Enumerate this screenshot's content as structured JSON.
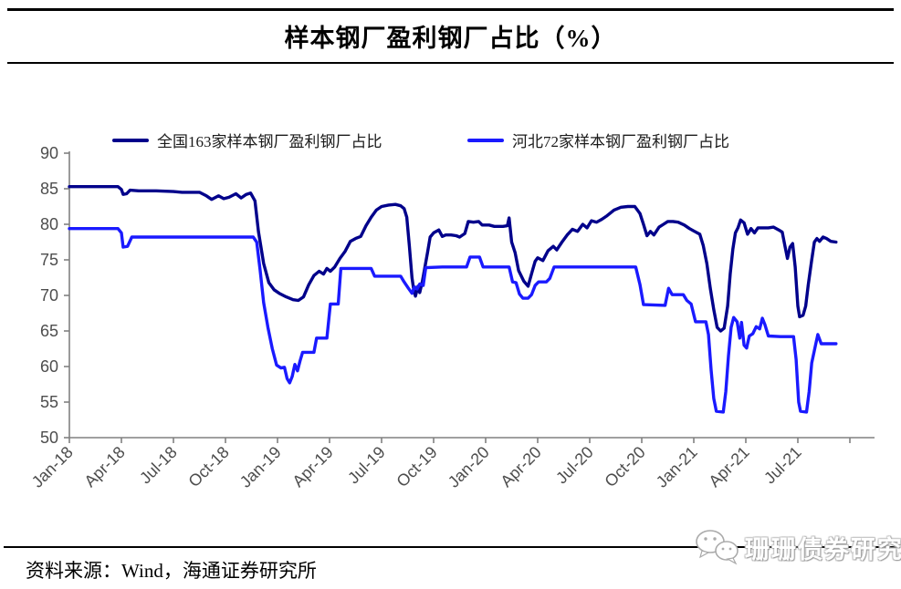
{
  "title": "样本钢厂盈利钢厂占比（%）",
  "source": {
    "label": "资料来源：Wind，海通证券研究所"
  },
  "watermark": {
    "text": "珊珊债券研究",
    "icon": "wechat-chat-bubbles-icon"
  },
  "axis_colors": {
    "axis_line": "#808080",
    "tick_text": "#4d4d4d"
  },
  "chart_data": {
    "type": "line",
    "title": "样本钢厂盈利钢厂占比（%）",
    "xlabel": "",
    "ylabel": "",
    "x_unit": "months since Jan-18",
    "ylim": [
      50,
      90
    ],
    "y_ticks": [
      50,
      55,
      60,
      65,
      70,
      75,
      80,
      85,
      90
    ],
    "x_tick_labels": [
      "Jan-18",
      "Apr-18",
      "Jul-18",
      "Oct-18",
      "Jan-19",
      "Apr-19",
      "Jul-19",
      "Oct-19",
      "Jan-20",
      "Apr-20",
      "Jul-20",
      "Oct-20",
      "Jan-21",
      "Apr-21",
      "Jul-21"
    ],
    "x_tick_positions": [
      0,
      3,
      6,
      9,
      12,
      15,
      18,
      21,
      24,
      27,
      30,
      33,
      36,
      39,
      42
    ],
    "extra_unlabeled_tick": 45,
    "grid": false,
    "legend_position": "top",
    "series": [
      {
        "name": "全国163家样本钢厂盈利钢厂占比",
        "color": "#00008B",
        "points": [
          [
            0,
            85.3
          ],
          [
            1,
            85.3
          ],
          [
            2,
            85.3
          ],
          [
            2.8,
            85.3
          ],
          [
            3.0,
            84.9
          ],
          [
            3.1,
            84.2
          ],
          [
            3.3,
            84.3
          ],
          [
            3.5,
            84.8
          ],
          [
            4,
            84.7
          ],
          [
            5,
            84.7
          ],
          [
            6,
            84.6
          ],
          [
            6.5,
            84.5
          ],
          [
            7.5,
            84.5
          ],
          [
            7.9,
            84.0
          ],
          [
            8.2,
            83.5
          ],
          [
            8.6,
            84.0
          ],
          [
            8.9,
            83.6
          ],
          [
            9.2,
            83.8
          ],
          [
            9.6,
            84.3
          ],
          [
            9.9,
            83.7
          ],
          [
            10.2,
            84.2
          ],
          [
            10.45,
            84.4
          ],
          [
            10.7,
            83.3
          ],
          [
            10.9,
            79.0
          ],
          [
            11.2,
            74.5
          ],
          [
            11.5,
            71.8
          ],
          [
            11.8,
            70.8
          ],
          [
            12.1,
            70.3
          ],
          [
            12.5,
            69.8
          ],
          [
            12.9,
            69.4
          ],
          [
            13.2,
            69.3
          ],
          [
            13.5,
            69.8
          ],
          [
            13.8,
            71.5
          ],
          [
            14.1,
            72.8
          ],
          [
            14.4,
            73.4
          ],
          [
            14.65,
            73.0
          ],
          [
            14.85,
            73.8
          ],
          [
            15.05,
            73.4
          ],
          [
            15.3,
            74.0
          ],
          [
            15.6,
            75.2
          ],
          [
            15.9,
            76.2
          ],
          [
            16.2,
            77.6
          ],
          [
            16.5,
            78.0
          ],
          [
            16.8,
            78.3
          ],
          [
            17.1,
            79.8
          ],
          [
            17.4,
            81.0
          ],
          [
            17.7,
            82.0
          ],
          [
            18.0,
            82.5
          ],
          [
            18.4,
            82.7
          ],
          [
            18.8,
            82.8
          ],
          [
            19.1,
            82.6
          ],
          [
            19.3,
            82.2
          ],
          [
            19.45,
            81.0
          ],
          [
            19.6,
            77.0
          ],
          [
            19.75,
            72.5
          ],
          [
            19.85,
            70.8
          ],
          [
            19.95,
            69.9
          ],
          [
            20.1,
            71.3
          ],
          [
            20.2,
            70.4
          ],
          [
            20.35,
            72.0
          ],
          [
            20.5,
            74.0
          ],
          [
            20.65,
            76.0
          ],
          [
            20.8,
            78.2
          ],
          [
            21.0,
            78.8
          ],
          [
            21.3,
            79.2
          ],
          [
            21.5,
            78.3
          ],
          [
            21.7,
            78.5
          ],
          [
            22.0,
            78.5
          ],
          [
            22.3,
            78.4
          ],
          [
            22.5,
            78.2
          ],
          [
            22.8,
            78.7
          ],
          [
            23.0,
            80.4
          ],
          [
            23.3,
            80.3
          ],
          [
            23.6,
            80.4
          ],
          [
            23.8,
            79.9
          ],
          [
            24.2,
            79.9
          ],
          [
            24.5,
            79.7
          ],
          [
            25.0,
            79.7
          ],
          [
            25.25,
            79.8
          ],
          [
            25.35,
            80.9
          ],
          [
            25.5,
            77.5
          ],
          [
            25.7,
            76.0
          ],
          [
            25.9,
            73.5
          ],
          [
            26.2,
            72.0
          ],
          [
            26.45,
            71.3
          ],
          [
            26.7,
            73.5
          ],
          [
            26.85,
            74.8
          ],
          [
            27.0,
            75.3
          ],
          [
            27.3,
            74.9
          ],
          [
            27.6,
            76.3
          ],
          [
            27.9,
            76.9
          ],
          [
            28.1,
            76.4
          ],
          [
            28.4,
            77.5
          ],
          [
            28.7,
            78.5
          ],
          [
            29.0,
            79.3
          ],
          [
            29.3,
            79.0
          ],
          [
            29.6,
            80.0
          ],
          [
            29.85,
            79.5
          ],
          [
            30.1,
            80.5
          ],
          [
            30.4,
            80.3
          ],
          [
            30.7,
            80.7
          ],
          [
            31.0,
            81.2
          ],
          [
            31.4,
            82.0
          ],
          [
            31.8,
            82.4
          ],
          [
            32.2,
            82.5
          ],
          [
            32.6,
            82.5
          ],
          [
            32.9,
            81.5
          ],
          [
            33.1,
            80.0
          ],
          [
            33.3,
            78.4
          ],
          [
            33.5,
            79.0
          ],
          [
            33.7,
            78.5
          ],
          [
            34.0,
            79.6
          ],
          [
            34.25,
            80.0
          ],
          [
            34.5,
            80.4
          ],
          [
            34.8,
            80.4
          ],
          [
            35.1,
            80.3
          ],
          [
            35.45,
            79.9
          ],
          [
            35.75,
            79.4
          ],
          [
            36.05,
            79.0
          ],
          [
            36.35,
            78.6
          ],
          [
            36.55,
            77.0
          ],
          [
            36.75,
            74.5
          ],
          [
            36.95,
            71.0
          ],
          [
            37.15,
            68.0
          ],
          [
            37.35,
            65.5
          ],
          [
            37.55,
            65.0
          ],
          [
            37.75,
            65.4
          ],
          [
            37.95,
            68.5
          ],
          [
            38.1,
            73.0
          ],
          [
            38.25,
            76.5
          ],
          [
            38.4,
            78.8
          ],
          [
            38.55,
            79.5
          ],
          [
            38.7,
            80.6
          ],
          [
            38.9,
            80.2
          ],
          [
            39.1,
            78.6
          ],
          [
            39.3,
            79.4
          ],
          [
            39.5,
            78.8
          ],
          [
            39.7,
            79.5
          ],
          [
            40.0,
            79.5
          ],
          [
            40.3,
            79.5
          ],
          [
            40.6,
            79.6
          ],
          [
            40.9,
            79.2
          ],
          [
            41.1,
            78.9
          ],
          [
            41.25,
            77.0
          ],
          [
            41.4,
            75.2
          ],
          [
            41.55,
            76.8
          ],
          [
            41.7,
            77.3
          ],
          [
            41.85,
            74.0
          ],
          [
            42.0,
            68.5
          ],
          [
            42.1,
            67.0
          ],
          [
            42.3,
            67.2
          ],
          [
            42.45,
            68.5
          ],
          [
            42.6,
            71.5
          ],
          [
            42.8,
            75.0
          ],
          [
            42.95,
            77.5
          ],
          [
            43.1,
            78.0
          ],
          [
            43.25,
            77.6
          ],
          [
            43.45,
            78.2
          ],
          [
            43.65,
            78.0
          ],
          [
            43.9,
            77.6
          ],
          [
            44.2,
            77.5
          ]
        ]
      },
      {
        "name": "河北72家样本钢厂盈利钢厂占比",
        "color": "#1A1AFF",
        "points": [
          [
            0,
            79.4
          ],
          [
            1,
            79.4
          ],
          [
            2,
            79.4
          ],
          [
            2.8,
            79.4
          ],
          [
            3.0,
            78.8
          ],
          [
            3.1,
            76.8
          ],
          [
            3.35,
            76.9
          ],
          [
            3.6,
            78.2
          ],
          [
            5,
            78.2
          ],
          [
            7,
            78.2
          ],
          [
            9,
            78.2
          ],
          [
            10.6,
            78.2
          ],
          [
            10.8,
            77.5
          ],
          [
            11.0,
            73.5
          ],
          [
            11.2,
            69.0
          ],
          [
            11.45,
            65.5
          ],
          [
            11.7,
            62.5
          ],
          [
            11.95,
            60.2
          ],
          [
            12.2,
            59.8
          ],
          [
            12.4,
            59.9
          ],
          [
            12.55,
            58.3
          ],
          [
            12.7,
            57.7
          ],
          [
            12.85,
            58.6
          ],
          [
            13.0,
            60.3
          ],
          [
            13.15,
            59.4
          ],
          [
            13.3,
            60.8
          ],
          [
            13.45,
            62.0
          ],
          [
            14.1,
            62.0
          ],
          [
            14.25,
            64.0
          ],
          [
            14.85,
            64.0
          ],
          [
            15.05,
            68.8
          ],
          [
            15.5,
            68.8
          ],
          [
            15.65,
            73.8
          ],
          [
            16.5,
            73.8
          ],
          [
            17.4,
            73.8
          ],
          [
            17.6,
            72.7
          ],
          [
            18.5,
            72.7
          ],
          [
            19.1,
            72.7
          ],
          [
            19.3,
            71.9
          ],
          [
            19.55,
            71.0
          ],
          [
            19.75,
            70.3
          ],
          [
            19.9,
            71.2
          ],
          [
            20.05,
            70.9
          ],
          [
            20.2,
            71.6
          ],
          [
            20.4,
            71.4
          ],
          [
            20.55,
            73.9
          ],
          [
            21.5,
            74.0
          ],
          [
            22.9,
            74.0
          ],
          [
            23.1,
            75.4
          ],
          [
            23.65,
            75.4
          ],
          [
            23.85,
            74.0
          ],
          [
            25.35,
            74.0
          ],
          [
            25.55,
            71.9
          ],
          [
            25.75,
            71.8
          ],
          [
            25.95,
            70.2
          ],
          [
            26.15,
            69.6
          ],
          [
            26.45,
            69.6
          ],
          [
            26.65,
            70.1
          ],
          [
            26.85,
            71.4
          ],
          [
            27.05,
            71.9
          ],
          [
            27.5,
            71.9
          ],
          [
            27.7,
            72.4
          ],
          [
            27.95,
            74.0
          ],
          [
            29.5,
            74.0
          ],
          [
            31.0,
            74.0
          ],
          [
            32.65,
            74.0
          ],
          [
            32.9,
            71.5
          ],
          [
            33.1,
            68.7
          ],
          [
            34.35,
            68.6
          ],
          [
            34.55,
            71.0
          ],
          [
            34.75,
            70.1
          ],
          [
            35.4,
            70.1
          ],
          [
            35.6,
            69.3
          ],
          [
            35.85,
            68.8
          ],
          [
            36.1,
            66.3
          ],
          [
            36.7,
            66.3
          ],
          [
            36.85,
            64.5
          ],
          [
            37.0,
            59.5
          ],
          [
            37.15,
            55.5
          ],
          [
            37.3,
            53.7
          ],
          [
            37.7,
            53.6
          ],
          [
            37.85,
            56.5
          ],
          [
            38.0,
            61.5
          ],
          [
            38.15,
            65.5
          ],
          [
            38.3,
            66.9
          ],
          [
            38.5,
            66.3
          ],
          [
            38.65,
            64.0
          ],
          [
            38.75,
            66.2
          ],
          [
            38.9,
            63.0
          ],
          [
            39.05,
            62.6
          ],
          [
            39.2,
            64.3
          ],
          [
            39.4,
            64.6
          ],
          [
            39.6,
            65.6
          ],
          [
            39.8,
            65.3
          ],
          [
            39.95,
            66.8
          ],
          [
            40.1,
            65.9
          ],
          [
            40.3,
            64.3
          ],
          [
            41.0,
            64.2
          ],
          [
            41.75,
            64.2
          ],
          [
            41.9,
            61.0
          ],
          [
            42.05,
            55.0
          ],
          [
            42.15,
            53.7
          ],
          [
            42.5,
            53.6
          ],
          [
            42.65,
            56.5
          ],
          [
            42.8,
            60.5
          ],
          [
            43.0,
            62.8
          ],
          [
            43.15,
            64.5
          ],
          [
            43.35,
            63.2
          ],
          [
            43.8,
            63.2
          ],
          [
            44.2,
            63.2
          ]
        ]
      }
    ]
  }
}
